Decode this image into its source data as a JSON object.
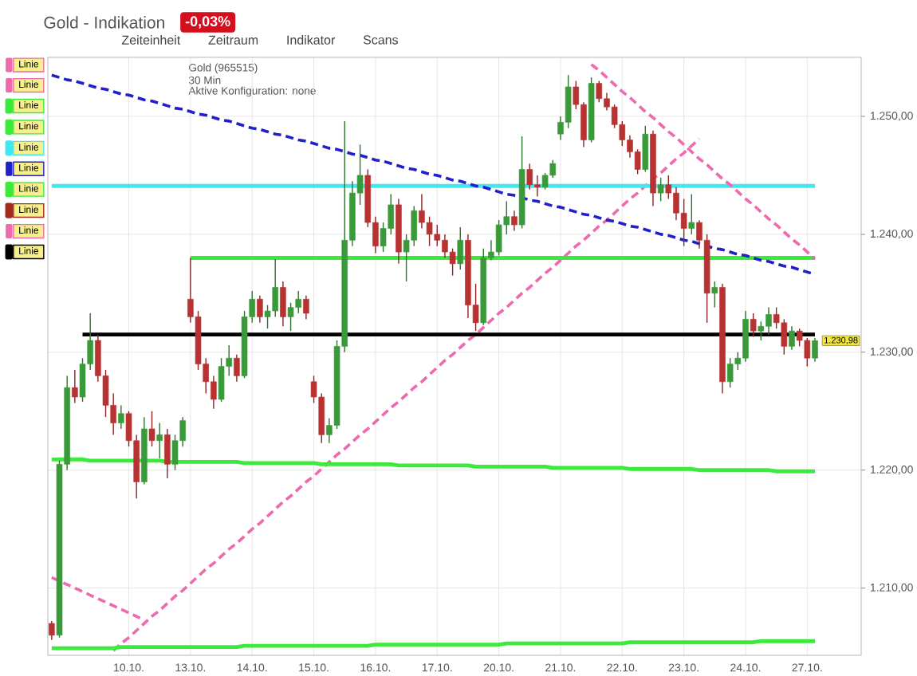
{
  "chart_data": {
    "type": "candlestick",
    "title": "Gold - Indikation",
    "annotations": [
      "-0,03%",
      "Zeiteinheit",
      "Zeitraum",
      "Indikator",
      "Scans",
      "Gold (965515)",
      "30 Min",
      "Aktive Konfiguration: none",
      "1.230,98"
    ],
    "categories": [
      null,
      null,
      null,
      null,
      null,
      null,
      null,
      null,
      null,
      null,
      "10.10.",
      null,
      null,
      null,
      null,
      null,
      null,
      null,
      "13.10.",
      null,
      null,
      null,
      null,
      null,
      null,
      null,
      "14.10.",
      null,
      null,
      null,
      null,
      null,
      null,
      null,
      "15.10.",
      null,
      null,
      null,
      null,
      null,
      null,
      null,
      "16.10.",
      null,
      null,
      null,
      null,
      null,
      null,
      null,
      "17.10.",
      null,
      null,
      null,
      null,
      null,
      null,
      null,
      "20.10.",
      null,
      null,
      null,
      null,
      null,
      null,
      null,
      "21.10.",
      null,
      null,
      null,
      null,
      null,
      null,
      null,
      "22.10.",
      null,
      null,
      null,
      null,
      null,
      null,
      null,
      "23.10.",
      null,
      null,
      null,
      null,
      null,
      null,
      null,
      "24.10.",
      null,
      null,
      null,
      null,
      null,
      null,
      null,
      "27.10.",
      null
    ],
    "series": [
      {
        "ohlc": [
          [
            1207.0,
            1207.2,
            1205.6,
            1206.0
          ],
          [
            1206.0,
            1220.8,
            1205.8,
            1220.5
          ],
          [
            1220.5,
            1228.0,
            1220.0,
            1227.0
          ],
          [
            1227.0,
            1228.5,
            1225.7,
            1226.2
          ],
          [
            1226.2,
            1229.5,
            1225.8,
            1229.0
          ],
          [
            1229.0,
            1233.3,
            1228.5,
            1231.0
          ],
          [
            1231.0,
            1231.5,
            1227.5,
            1228.0
          ],
          [
            1228.0,
            1228.5,
            1224.5,
            1225.5
          ],
          [
            1225.5,
            1226.5,
            1223.0,
            1224.0
          ],
          [
            1224.0,
            1225.5,
            1223.5,
            1224.8
          ],
          [
            1224.8,
            1225.0,
            1222.0,
            1222.5
          ],
          [
            1222.5,
            1223.0,
            1217.6,
            1219.0
          ],
          [
            1219.0,
            1224.5,
            1218.8,
            1223.5
          ],
          [
            1223.5,
            1225.0,
            1222.0,
            1222.5
          ],
          [
            1222.5,
            1224.0,
            1221.0,
            1223.0
          ],
          [
            1223.0,
            1223.5,
            1219.3,
            1220.5
          ],
          [
            1220.5,
            1223.0,
            1220.0,
            1222.5
          ],
          [
            1222.5,
            1224.5,
            1222.0,
            1224.2
          ],
          [
            1234.5,
            1238.0,
            1232.5,
            1233.0
          ],
          [
            1233.0,
            1233.5,
            1228.5,
            1229.0
          ],
          [
            1229.0,
            1229.5,
            1226.5,
            1227.5
          ],
          [
            1227.5,
            1228.0,
            1225.2,
            1226.0
          ],
          [
            1226.0,
            1229.5,
            1225.8,
            1228.8
          ],
          [
            1228.8,
            1230.6,
            1228.0,
            1229.5
          ],
          [
            1229.5,
            1229.8,
            1227.5,
            1228.0
          ],
          [
            1228.0,
            1233.5,
            1227.8,
            1233.0
          ],
          [
            1233.0,
            1235.2,
            1232.5,
            1234.5
          ],
          [
            1234.5,
            1234.8,
            1232.5,
            1233.0
          ],
          [
            1233.0,
            1234.0,
            1232.0,
            1233.5
          ],
          [
            1233.5,
            1237.9,
            1233.0,
            1235.5
          ],
          [
            1235.5,
            1236.0,
            1232.2,
            1233.0
          ],
          [
            1233.0,
            1234.2,
            1231.8,
            1233.8
          ],
          [
            1233.8,
            1235.2,
            1233.3,
            1234.5
          ],
          [
            1234.5,
            1234.8,
            1232.8,
            1233.3
          ],
          [
            1227.5,
            1228.0,
            1225.7,
            1226.2
          ],
          [
            1226.2,
            1226.5,
            1222.3,
            1223.0
          ],
          [
            1223.0,
            1224.4,
            1222.3,
            1223.8
          ],
          [
            1223.8,
            1231.0,
            1223.5,
            1230.5
          ],
          [
            1230.5,
            1249.6,
            1230.0,
            1239.5
          ],
          [
            1239.5,
            1244.5,
            1239.0,
            1243.5
          ],
          [
            1243.5,
            1247.6,
            1242.5,
            1245.0
          ],
          [
            1245.0,
            1245.5,
            1240.6,
            1241.0
          ],
          [
            1241.0,
            1241.5,
            1238.4,
            1239.0
          ],
          [
            1239.0,
            1241.0,
            1238.5,
            1240.5
          ],
          [
            1240.5,
            1243.4,
            1240.0,
            1242.5
          ],
          [
            1242.5,
            1243.0,
            1237.5,
            1238.5
          ],
          [
            1238.5,
            1240.0,
            1236.0,
            1239.5
          ],
          [
            1239.5,
            1242.4,
            1239.0,
            1242.0
          ],
          [
            1242.0,
            1243.4,
            1240.5,
            1241.0
          ],
          [
            1241.0,
            1241.5,
            1239.0,
            1240.0
          ],
          [
            1240.0,
            1240.8,
            1239.0,
            1239.5
          ],
          [
            1239.5,
            1240.0,
            1238.0,
            1238.5
          ],
          [
            1238.5,
            1238.8,
            1236.5,
            1237.5
          ],
          [
            1237.5,
            1240.6,
            1237.0,
            1239.5
          ],
          [
            1239.5,
            1240.0,
            1232.9,
            1234.0
          ],
          [
            1234.0,
            1235.8,
            1231.8,
            1232.5
          ],
          [
            1232.5,
            1238.8,
            1232.3,
            1238.0
          ],
          [
            1238.0,
            1239.5,
            1237.8,
            1238.5
          ],
          [
            1238.5,
            1241.2,
            1238.2,
            1240.8
          ],
          [
            1240.8,
            1242.8,
            1240.0,
            1241.5
          ],
          [
            1241.5,
            1242.0,
            1240.3,
            1240.8
          ],
          [
            1240.8,
            1248.3,
            1240.5,
            1245.5
          ],
          [
            1245.5,
            1246.0,
            1243.8,
            1244.2
          ],
          [
            1244.2,
            1245.0,
            1243.2,
            1244.0
          ],
          [
            1244.0,
            1245.2,
            1243.8,
            1245.0
          ],
          [
            1245.0,
            1246.3,
            1244.8,
            1246.0
          ],
          [
            1248.5,
            1250.0,
            1248.0,
            1249.5
          ],
          [
            1249.5,
            1253.5,
            1249.0,
            1252.5
          ],
          [
            1252.5,
            1253.0,
            1250.6,
            1251.0
          ],
          [
            1251.0,
            1251.2,
            1247.4,
            1248.0
          ],
          [
            1248.0,
            1253.3,
            1247.8,
            1252.8
          ],
          [
            1252.8,
            1253.0,
            1251.2,
            1251.5
          ],
          [
            1251.5,
            1252.0,
            1250.5,
            1250.8
          ],
          [
            1250.8,
            1251.0,
            1249.0,
            1249.3
          ],
          [
            1249.3,
            1249.6,
            1247.5,
            1248.0
          ],
          [
            1248.0,
            1248.4,
            1246.5,
            1247.0
          ],
          [
            1247.0,
            1247.2,
            1245.1,
            1245.5
          ],
          [
            1245.5,
            1249.2,
            1245.3,
            1248.5
          ],
          [
            1248.5,
            1248.8,
            1242.4,
            1243.5
          ],
          [
            1243.5,
            1244.8,
            1242.8,
            1244.2
          ],
          [
            1244.2,
            1245.0,
            1243.0,
            1243.5
          ],
          [
            1243.5,
            1244.0,
            1241.2,
            1241.8
          ],
          [
            1241.8,
            1243.0,
            1239.0,
            1240.5
          ],
          [
            1240.5,
            1243.4,
            1240.0,
            1241.0
          ],
          [
            1241.0,
            1241.2,
            1238.8,
            1239.5
          ],
          [
            1239.5,
            1240.0,
            1232.5,
            1235.0
          ],
          [
            1235.0,
            1236.0,
            1233.8,
            1235.5
          ],
          [
            1235.5,
            1235.8,
            1226.5,
            1227.5
          ],
          [
            1227.5,
            1229.5,
            1227.0,
            1229.0
          ],
          [
            1229.0,
            1230.0,
            1228.5,
            1229.5
          ],
          [
            1229.5,
            1233.5,
            1229.2,
            1232.8
          ],
          [
            1232.8,
            1233.3,
            1231.3,
            1231.8
          ],
          [
            1231.8,
            1232.6,
            1231.0,
            1232.2
          ],
          [
            1232.2,
            1233.8,
            1231.5,
            1233.2
          ],
          [
            1233.2,
            1233.8,
            1232.0,
            1232.5
          ],
          [
            1232.5,
            1232.8,
            1229.8,
            1230.5
          ],
          [
            1230.5,
            1232.2,
            1230.2,
            1231.8
          ],
          [
            1231.8,
            1232.0,
            1230.5,
            1231.0
          ],
          [
            1231.0,
            1231.2,
            1228.8,
            1229.5
          ],
          [
            1229.5,
            1231.2,
            1229.2,
            1230.98
          ]
        ],
        "colors": [
          "#b83232",
          "#3a9a3a",
          "#3a9a3a",
          "#b83232",
          "#3a9a3a",
          "#3a9a3a",
          "#b83232",
          "#b83232",
          "#b83232",
          "#3a9a3a",
          "#b83232",
          "#b83232",
          "#3a9a3a",
          "#b83232",
          "#3a9a3a",
          "#b83232",
          "#3a9a3a",
          "#3a9a3a",
          "#b83232",
          "#b83232",
          "#b83232",
          "#b83232",
          "#3a9a3a",
          "#3a9a3a",
          "#b83232",
          "#3a9a3a",
          "#3a9a3a",
          "#b83232",
          "#3a9a3a",
          "#3a9a3a",
          "#b83232",
          "#3a9a3a",
          "#3a9a3a",
          "#b83232",
          "#b83232",
          "#b83232",
          "#3a9a3a",
          "#3a9a3a",
          "#3a9a3a",
          "#3a9a3a",
          "#3a9a3a",
          "#b83232",
          "#b83232",
          "#3a9a3a",
          "#3a9a3a",
          "#b83232",
          "#3a9a3a",
          "#3a9a3a",
          "#b83232",
          "#b83232",
          "#b83232",
          "#b83232",
          "#b83232",
          "#3a9a3a",
          "#b83232",
          "#b83232",
          "#3a9a3a",
          "#3a9a3a",
          "#3a9a3a",
          "#3a9a3a",
          "#b83232",
          "#3a9a3a",
          "#b83232",
          "#b83232",
          "#3a9a3a",
          "#3a9a3a",
          "#3a9a3a",
          "#3a9a3a",
          "#b83232",
          "#b83232",
          "#3a9a3a",
          "#b83232",
          "#b83232",
          "#b83232",
          "#b83232",
          "#b83232",
          "#b83232",
          "#3a9a3a",
          "#b83232",
          "#3a9a3a",
          "#b83232",
          "#b83232",
          "#b83232",
          "#3a9a3a",
          "#b83232",
          "#b83232",
          "#3a9a3a",
          "#b83232",
          "#3a9a3a",
          "#3a9a3a",
          "#3a9a3a",
          "#b83232",
          "#3a9a3a",
          "#3a9a3a",
          "#b83232",
          "#b83232",
          "#3a9a3a",
          "#b83232",
          "#b83232",
          "#3a9a3a"
        ]
      },
      {
        "type": "line",
        "name": "Linie",
        "color": "#ee6aae",
        "line_style": "dashed",
        "values": [
          1210.9,
          1210.6,
          1210.3,
          1210.0,
          1209.7,
          1209.4,
          1209.1,
          1208.8,
          1208.5,
          1208.2,
          1207.9,
          1207.6,
          1207.3,
          null,
          null,
          null,
          null,
          null,
          null,
          null,
          null,
          null,
          null,
          null,
          null,
          null,
          null,
          null,
          null,
          null,
          null,
          null,
          null,
          null,
          null,
          null,
          null,
          null,
          null,
          null,
          null,
          null,
          null,
          null,
          null,
          null,
          null,
          null,
          null,
          null,
          null,
          null,
          null,
          null,
          null,
          null,
          null,
          null,
          null,
          null,
          null,
          null,
          null,
          null,
          null,
          null,
          null,
          null,
          null,
          null,
          null,
          null,
          null,
          null,
          null,
          null,
          null,
          null,
          null,
          null,
          null,
          null,
          null,
          null,
          null,
          null,
          null,
          null,
          null,
          null,
          null,
          null,
          null,
          null,
          null,
          null,
          null,
          null,
          null,
          null
        ]
      },
      {
        "type": "line",
        "name": "Linie",
        "color": "#ee6aae",
        "line_style": "dashed",
        "values": [
          null,
          null,
          null,
          null,
          null,
          null,
          null,
          null,
          1204.7,
          1205.3,
          1205.8,
          1206.4,
          1207.0,
          1207.6,
          1208.1,
          1208.7,
          1209.3,
          1209.8,
          1210.4,
          1211.0,
          1211.6,
          1212.1,
          1212.7,
          1213.3,
          1213.8,
          1214.4,
          1215.0,
          1215.5,
          1216.1,
          1216.7,
          1217.3,
          1217.8,
          1218.4,
          1219.0,
          1219.5,
          1220.1,
          1220.7,
          1221.3,
          1221.8,
          1222.4,
          1223.0,
          1223.5,
          1224.1,
          1224.7,
          1225.3,
          1225.8,
          1226.4,
          1227.0,
          1227.5,
          1228.1,
          1228.7,
          1229.3,
          1229.8,
          1230.4,
          1231.0,
          1231.5,
          1232.1,
          1232.7,
          1233.3,
          1233.8,
          1234.4,
          1235.0,
          1235.5,
          1236.1,
          1236.7,
          1237.2,
          1237.8,
          1238.4,
          1239.0,
          1239.5,
          1240.1,
          1240.7,
          1241.2,
          1241.8,
          1242.4,
          1243.0,
          1243.5,
          1244.1,
          1244.7,
          1245.2,
          1245.8,
          1246.4,
          1246.9,
          1247.5,
          1248.1,
          null,
          null,
          null,
          null,
          null,
          null,
          null,
          null,
          null,
          null,
          null,
          null,
          null,
          null,
          null
        ]
      },
      {
        "type": "line",
        "name": "Linie",
        "color": "#3cea3c",
        "line_style": "solid",
        "values": [
          null,
          null,
          null,
          null,
          null,
          null,
          null,
          null,
          null,
          null,
          null,
          null,
          null,
          null,
          null,
          null,
          null,
          null,
          1238.0,
          1238.0,
          1238.0,
          1238.0,
          1238.0,
          1238.0,
          1238.0,
          1238.0,
          1238.0,
          1238.0,
          1238.0,
          1238.0,
          1238.0,
          1238.0,
          1238.0,
          1238.0,
          1238.0,
          1238.0,
          1238.0,
          1238.0,
          1238.0,
          1238.0,
          1238.0,
          1238.0,
          1238.0,
          1238.0,
          1238.0,
          1238.0,
          1238.0,
          1238.0,
          1238.0,
          1238.0,
          1238.0,
          1238.0,
          1238.0,
          1238.0,
          1238.0,
          1238.0,
          1238.0,
          1238.0,
          1238.0,
          1238.0,
          1238.0,
          1238.0,
          1238.0,
          1238.0,
          1238.0,
          1238.0,
          1238.0,
          1238.0,
          1238.0,
          1238.0,
          1238.0,
          1238.0,
          1238.0,
          1238.0,
          1238.0,
          1238.0,
          1238.0,
          1238.0,
          1238.0,
          1238.0,
          1238.0,
          1238.0,
          1238.0,
          1238.0,
          1238.0,
          1238.0,
          1238.0,
          1238.0,
          1238.0,
          1238.0,
          1238.0,
          1238.0,
          1238.0,
          1238.0,
          1238.0,
          1238.0,
          1238.0,
          1238.0,
          1238.0,
          1238.0
        ]
      },
      {
        "type": "line",
        "name": "Linie",
        "color": "#3cea3c",
        "line_style": "solid",
        "values": [
          1220.9,
          1220.9,
          1220.9,
          1220.9,
          1220.9,
          1220.8,
          1220.8,
          1220.8,
          1220.8,
          1220.8,
          1220.8,
          1220.8,
          1220.8,
          1220.8,
          1220.8,
          1220.7,
          1220.7,
          1220.7,
          1220.7,
          1220.7,
          1220.7,
          1220.7,
          1220.7,
          1220.7,
          1220.7,
          1220.6,
          1220.6,
          1220.6,
          1220.6,
          1220.6,
          1220.6,
          1220.6,
          1220.6,
          1220.6,
          1220.6,
          1220.5,
          1220.5,
          1220.5,
          1220.5,
          1220.5,
          1220.5,
          1220.5,
          1220.5,
          1220.5,
          1220.5,
          1220.4,
          1220.4,
          1220.4,
          1220.4,
          1220.4,
          1220.4,
          1220.4,
          1220.4,
          1220.4,
          1220.4,
          1220.3,
          1220.3,
          1220.3,
          1220.3,
          1220.3,
          1220.3,
          1220.3,
          1220.3,
          1220.3,
          1220.3,
          1220.2,
          1220.2,
          1220.2,
          1220.2,
          1220.2,
          1220.2,
          1220.2,
          1220.2,
          1220.2,
          1220.2,
          1220.1,
          1220.1,
          1220.1,
          1220.1,
          1220.1,
          1220.1,
          1220.1,
          1220.1,
          1220.1,
          1220.0,
          1220.0,
          1220.0,
          1220.0,
          1220.0,
          1220.0,
          1220.0,
          1220.0,
          1220.0,
          1220.0,
          1219.9,
          1219.9,
          1219.9,
          1219.9,
          1219.9,
          1219.9
        ]
      },
      {
        "type": "line",
        "name": "Linie",
        "color": "#40e8f2",
        "line_style": "solid",
        "values": [
          1244.1,
          1244.1,
          1244.1,
          1244.1,
          1244.1,
          1244.1,
          1244.1,
          1244.1,
          1244.1,
          1244.1,
          1244.1,
          1244.1,
          1244.1,
          1244.1,
          1244.1,
          1244.1,
          1244.1,
          1244.1,
          1244.1,
          1244.1,
          1244.1,
          1244.1,
          1244.1,
          1244.1,
          1244.1,
          1244.1,
          1244.1,
          1244.1,
          1244.1,
          1244.1,
          1244.1,
          1244.1,
          1244.1,
          1244.1,
          1244.1,
          1244.1,
          1244.1,
          1244.1,
          1244.1,
          1244.1,
          1244.1,
          1244.1,
          1244.1,
          1244.1,
          1244.1,
          1244.1,
          1244.1,
          1244.1,
          1244.1,
          1244.1,
          1244.1,
          1244.1,
          1244.1,
          1244.1,
          1244.1,
          1244.1,
          1244.1,
          1244.1,
          1244.1,
          1244.1,
          1244.1,
          1244.1,
          1244.1,
          1244.1,
          1244.1,
          1244.1,
          1244.1,
          1244.1,
          1244.1,
          1244.1,
          1244.1,
          1244.1,
          1244.1,
          1244.1,
          1244.1,
          1244.1,
          1244.1,
          1244.1,
          1244.1,
          1244.1,
          1244.1,
          1244.1,
          1244.1,
          1244.1,
          1244.1,
          1244.1,
          1244.1,
          1244.1,
          1244.1,
          1244.1,
          1244.1,
          1244.1,
          1244.1,
          1244.1,
          1244.1,
          1244.1,
          1244.1,
          1244.1,
          1244.1,
          1244.1
        ]
      },
      {
        "type": "line",
        "name": "Linie",
        "color": "#2020c8",
        "line_style": "dashed",
        "values": [
          1253.5,
          1253.3,
          1253.1,
          1253.0,
          1252.8,
          1252.6,
          1252.4,
          1252.3,
          1252.1,
          1251.9,
          1251.8,
          1251.6,
          1251.4,
          1251.3,
          1251.1,
          1250.9,
          1250.7,
          1250.6,
          1250.4,
          1250.2,
          1250.1,
          1249.9,
          1249.7,
          1249.6,
          1249.4,
          1249.2,
          1249.0,
          1248.9,
          1248.7,
          1248.5,
          1248.4,
          1248.2,
          1248.0,
          1247.9,
          1247.7,
          1247.5,
          1247.3,
          1247.2,
          1247.0,
          1246.8,
          1246.7,
          1246.5,
          1246.3,
          1246.2,
          1246.0,
          1245.8,
          1245.6,
          1245.5,
          1245.3,
          1245.1,
          1245.0,
          1244.8,
          1244.6,
          1244.5,
          1244.3,
          1244.1,
          1244.0,
          1243.8,
          1243.6,
          1243.4,
          1243.3,
          1243.1,
          1242.9,
          1242.8,
          1242.6,
          1242.4,
          1242.3,
          1242.1,
          1241.9,
          1241.7,
          1241.6,
          1241.4,
          1241.2,
          1241.1,
          1240.9,
          1240.7,
          1240.6,
          1240.4,
          1240.2,
          1240.0,
          1239.9,
          1239.7,
          1239.5,
          1239.4,
          1239.2,
          1239.0,
          1238.8,
          1238.7,
          1238.5,
          1238.3,
          1238.2,
          1238.0,
          1237.8,
          1237.7,
          1237.5,
          1237.3,
          1237.2,
          1237.0,
          1236.8,
          1236.6
        ]
      },
      {
        "type": "line",
        "name": "Linie",
        "color": "#3cea3c",
        "line_style": "solid",
        "values": [
          1204.9,
          1204.9,
          1204.9,
          1204.9,
          1204.9,
          1204.9,
          1204.9,
          1204.9,
          1204.9,
          1205.0,
          1205.0,
          1205.0,
          1205.0,
          1205.0,
          1205.0,
          1205.0,
          1205.0,
          1205.0,
          1205.0,
          1205.0,
          1205.0,
          1205.0,
          1205.0,
          1205.0,
          1205.0,
          1205.1,
          1205.1,
          1205.1,
          1205.1,
          1205.1,
          1205.1,
          1205.1,
          1205.1,
          1205.1,
          1205.1,
          1205.1,
          1205.1,
          1205.1,
          1205.1,
          1205.1,
          1205.1,
          1205.1,
          1205.2,
          1205.2,
          1205.2,
          1205.2,
          1205.2,
          1205.2,
          1205.2,
          1205.2,
          1205.2,
          1205.2,
          1205.2,
          1205.2,
          1205.2,
          1205.2,
          1205.2,
          1205.2,
          1205.2,
          1205.3,
          1205.3,
          1205.3,
          1205.3,
          1205.3,
          1205.3,
          1205.3,
          1205.3,
          1205.3,
          1205.3,
          1205.3,
          1205.3,
          1205.3,
          1205.3,
          1205.3,
          1205.3,
          1205.4,
          1205.4,
          1205.4,
          1205.4,
          1205.4,
          1205.4,
          1205.4,
          1205.4,
          1205.4,
          1205.4,
          1205.4,
          1205.4,
          1205.4,
          1205.4,
          1205.4,
          1205.4,
          1205.4,
          1205.5,
          1205.5,
          1205.5,
          1205.5,
          1205.5,
          1205.5,
          1205.5,
          1205.5
        ]
      },
      {
        "type": "line",
        "name": "Linie",
        "color": "#a52a1e",
        "line_style": "solid",
        "values": [
          null,
          null,
          null,
          null,
          null,
          null,
          null,
          null,
          null,
          null,
          null,
          null,
          null,
          null,
          null,
          null,
          null,
          null,
          null,
          null,
          null,
          null,
          null,
          null,
          null,
          null,
          null,
          null,
          null,
          null,
          null,
          null,
          null,
          null,
          null,
          null,
          null,
          null,
          null,
          null,
          null,
          null,
          null,
          null,
          null,
          null,
          null,
          null,
          null,
          null,
          null,
          null,
          null,
          null,
          null,
          null,
          null,
          null,
          null,
          null,
          null,
          null,
          null,
          null,
          null,
          null,
          null,
          null,
          null,
          null,
          null,
          null,
          null,
          null,
          null,
          null,
          null,
          null,
          null,
          null,
          null,
          null,
          null,
          null,
          null,
          null,
          null,
          null,
          null,
          null,
          null,
          null,
          null,
          null,
          null,
          null,
          null,
          null,
          null,
          null
        ]
      },
      {
        "type": "line",
        "name": "Linie",
        "color": "#ee6aae",
        "line_style": "dashed",
        "values": [
          null,
          null,
          null,
          null,
          null,
          null,
          null,
          null,
          null,
          null,
          null,
          null,
          null,
          null,
          null,
          null,
          null,
          null,
          null,
          null,
          null,
          null,
          null,
          null,
          null,
          null,
          null,
          null,
          null,
          null,
          null,
          null,
          null,
          null,
          null,
          null,
          null,
          null,
          null,
          null,
          null,
          null,
          null,
          null,
          null,
          null,
          null,
          null,
          null,
          null,
          null,
          null,
          null,
          null,
          null,
          null,
          null,
          null,
          null,
          null,
          null,
          null,
          null,
          null,
          null,
          null,
          null,
          null,
          null,
          null,
          1254.4,
          1253.9,
          1253.3,
          1252.7,
          1252.1,
          1251.6,
          1251.0,
          1250.4,
          1249.9,
          1249.3,
          1248.7,
          1248.2,
          1247.6,
          1247.0,
          1246.4,
          1245.9,
          1245.3,
          1244.7,
          1244.2,
          1243.6,
          1243.0,
          1242.5,
          1241.9,
          1241.3,
          1240.8,
          1240.2,
          1239.6,
          1239.1,
          1238.5,
          1237.9
        ]
      },
      {
        "type": "line",
        "name": "Linie",
        "color": "#000000",
        "line_style": "solid",
        "values": [
          null,
          null,
          null,
          null,
          1231.5,
          1231.5,
          1231.5,
          1231.5,
          1231.5,
          1231.5,
          1231.5,
          1231.5,
          1231.5,
          1231.5,
          1231.5,
          1231.5,
          1231.5,
          1231.5,
          1231.5,
          1231.5,
          1231.5,
          1231.5,
          1231.5,
          1231.5,
          1231.5,
          1231.5,
          1231.5,
          1231.5,
          1231.5,
          1231.5,
          1231.5,
          1231.5,
          1231.5,
          1231.5,
          1231.5,
          1231.5,
          1231.5,
          1231.5,
          1231.5,
          1231.5,
          1231.5,
          1231.5,
          1231.5,
          1231.5,
          1231.5,
          1231.5,
          1231.5,
          1231.5,
          1231.5,
          1231.5,
          1231.5,
          1231.5,
          1231.5,
          1231.5,
          1231.5,
          1231.5,
          1231.5,
          1231.5,
          1231.5,
          1231.5,
          1231.5,
          1231.5,
          1231.5,
          1231.5,
          1231.5,
          1231.5,
          1231.5,
          1231.5,
          1231.5,
          1231.5,
          1231.5,
          1231.5,
          1231.5,
          1231.5,
          1231.5,
          1231.5,
          1231.5,
          1231.5,
          1231.5,
          1231.5,
          1231.5,
          1231.5,
          1231.5,
          1231.5,
          1231.5,
          1231.5,
          1231.5,
          1231.5,
          1231.5,
          1231.5,
          1231.5,
          1231.5,
          1231.5,
          1231.5,
          1231.5,
          1231.5,
          1231.5,
          1231.5,
          1231.5,
          1231.5
        ]
      }
    ],
    "ylim": [
      1204.3,
      1255
    ],
    "yticks": [
      {
        "value": 1210,
        "label": "1.210,00"
      },
      {
        "value": 1220,
        "label": "1.220,00"
      },
      {
        "value": 1230,
        "label": "1.230,00"
      },
      {
        "value": 1240,
        "label": "1.240,00"
      },
      {
        "value": 1250,
        "label": "1.250,00"
      }
    ],
    "grid": true,
    "legend": "top left"
  }
}
